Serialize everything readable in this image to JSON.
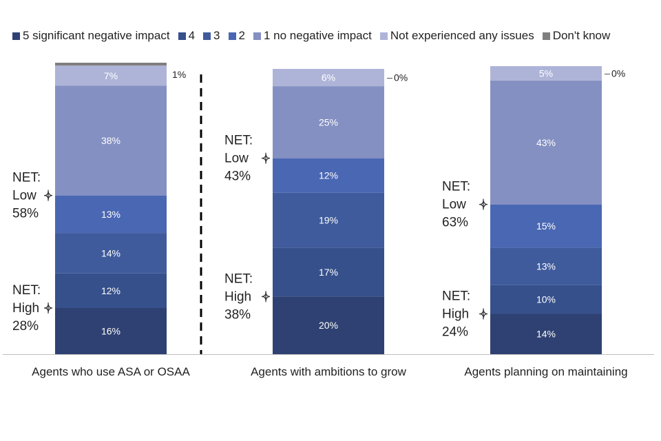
{
  "chart_data": {
    "type": "bar",
    "stacked": true,
    "categories": [
      "Agents who use ASA or OSAA",
      "Agents with ambitions to grow",
      "Agents planning on maintaining"
    ],
    "series": [
      {
        "name": "5 significant negative impact",
        "color": "#2e4172",
        "values": [
          16,
          20,
          14
        ]
      },
      {
        "name": "4",
        "color": "#36508b",
        "values": [
          12,
          17,
          10
        ]
      },
      {
        "name": "3",
        "color": "#3f5b9c",
        "values": [
          14,
          19,
          13
        ]
      },
      {
        "name": "2",
        "color": "#4a67b3",
        "values": [
          13,
          12,
          15
        ]
      },
      {
        "name": "1 no negative impact",
        "color": "#8590c2",
        "values": [
          38,
          25,
          43
        ]
      },
      {
        "name": "Not experienced any issues",
        "color": "#aeb4d8",
        "values": [
          7,
          6,
          5
        ]
      },
      {
        "name": "Don't know",
        "color": "#7f7f7f",
        "values": [
          1,
          0,
          0
        ]
      }
    ],
    "ylim": [
      0,
      101
    ],
    "nets": [
      {
        "high": "NET:\nHigh\n28%",
        "low": "NET:\nLow\n58%"
      },
      {
        "high": "NET:\nHigh\n38%",
        "low": "NET:\nLow\n43%"
      },
      {
        "high": "NET:\nHigh\n24%",
        "low": "NET:\nLow\n63%"
      }
    ],
    "dont_know_labels": [
      "1%",
      "0%",
      "0%"
    ],
    "legend_position": "top",
    "grid": false
  }
}
